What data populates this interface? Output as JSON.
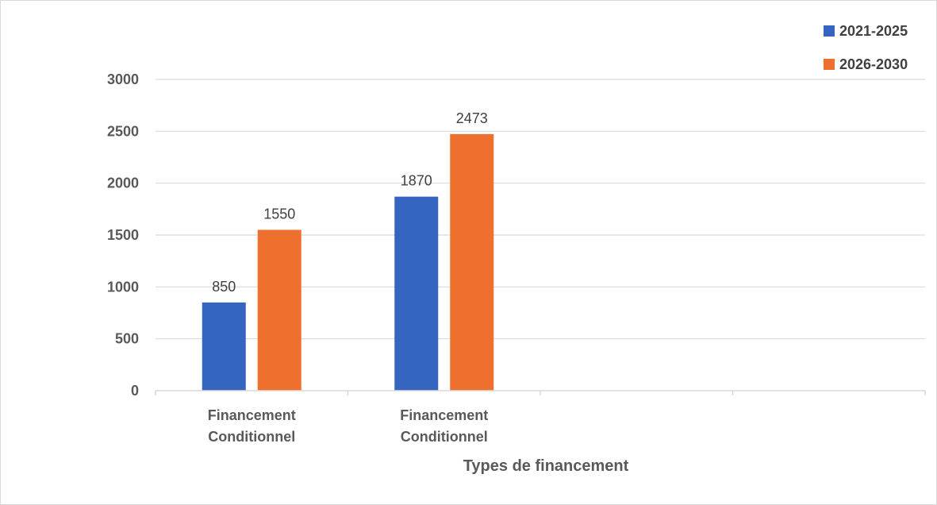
{
  "chart_data": {
    "type": "bar",
    "categories": [
      "Financement Conditionnel",
      "Financement Conditionnel",
      "",
      ""
    ],
    "series": [
      {
        "name": "2021-2025",
        "color": "#3565c0",
        "values": [
          850,
          1870,
          null,
          null
        ]
      },
      {
        "name": "2026-2030",
        "color": "#ef6f2e",
        "values": [
          1550,
          2473,
          null,
          null
        ]
      }
    ],
    "title": "",
    "xlabel": "Types de financement",
    "ylabel": "",
    "ylim": [
      0,
      3000
    ],
    "yticks": [
      0,
      500,
      1000,
      1500,
      2000,
      2500,
      3000
    ],
    "grid": true,
    "legend_position": "top-right",
    "data_labels": true
  }
}
